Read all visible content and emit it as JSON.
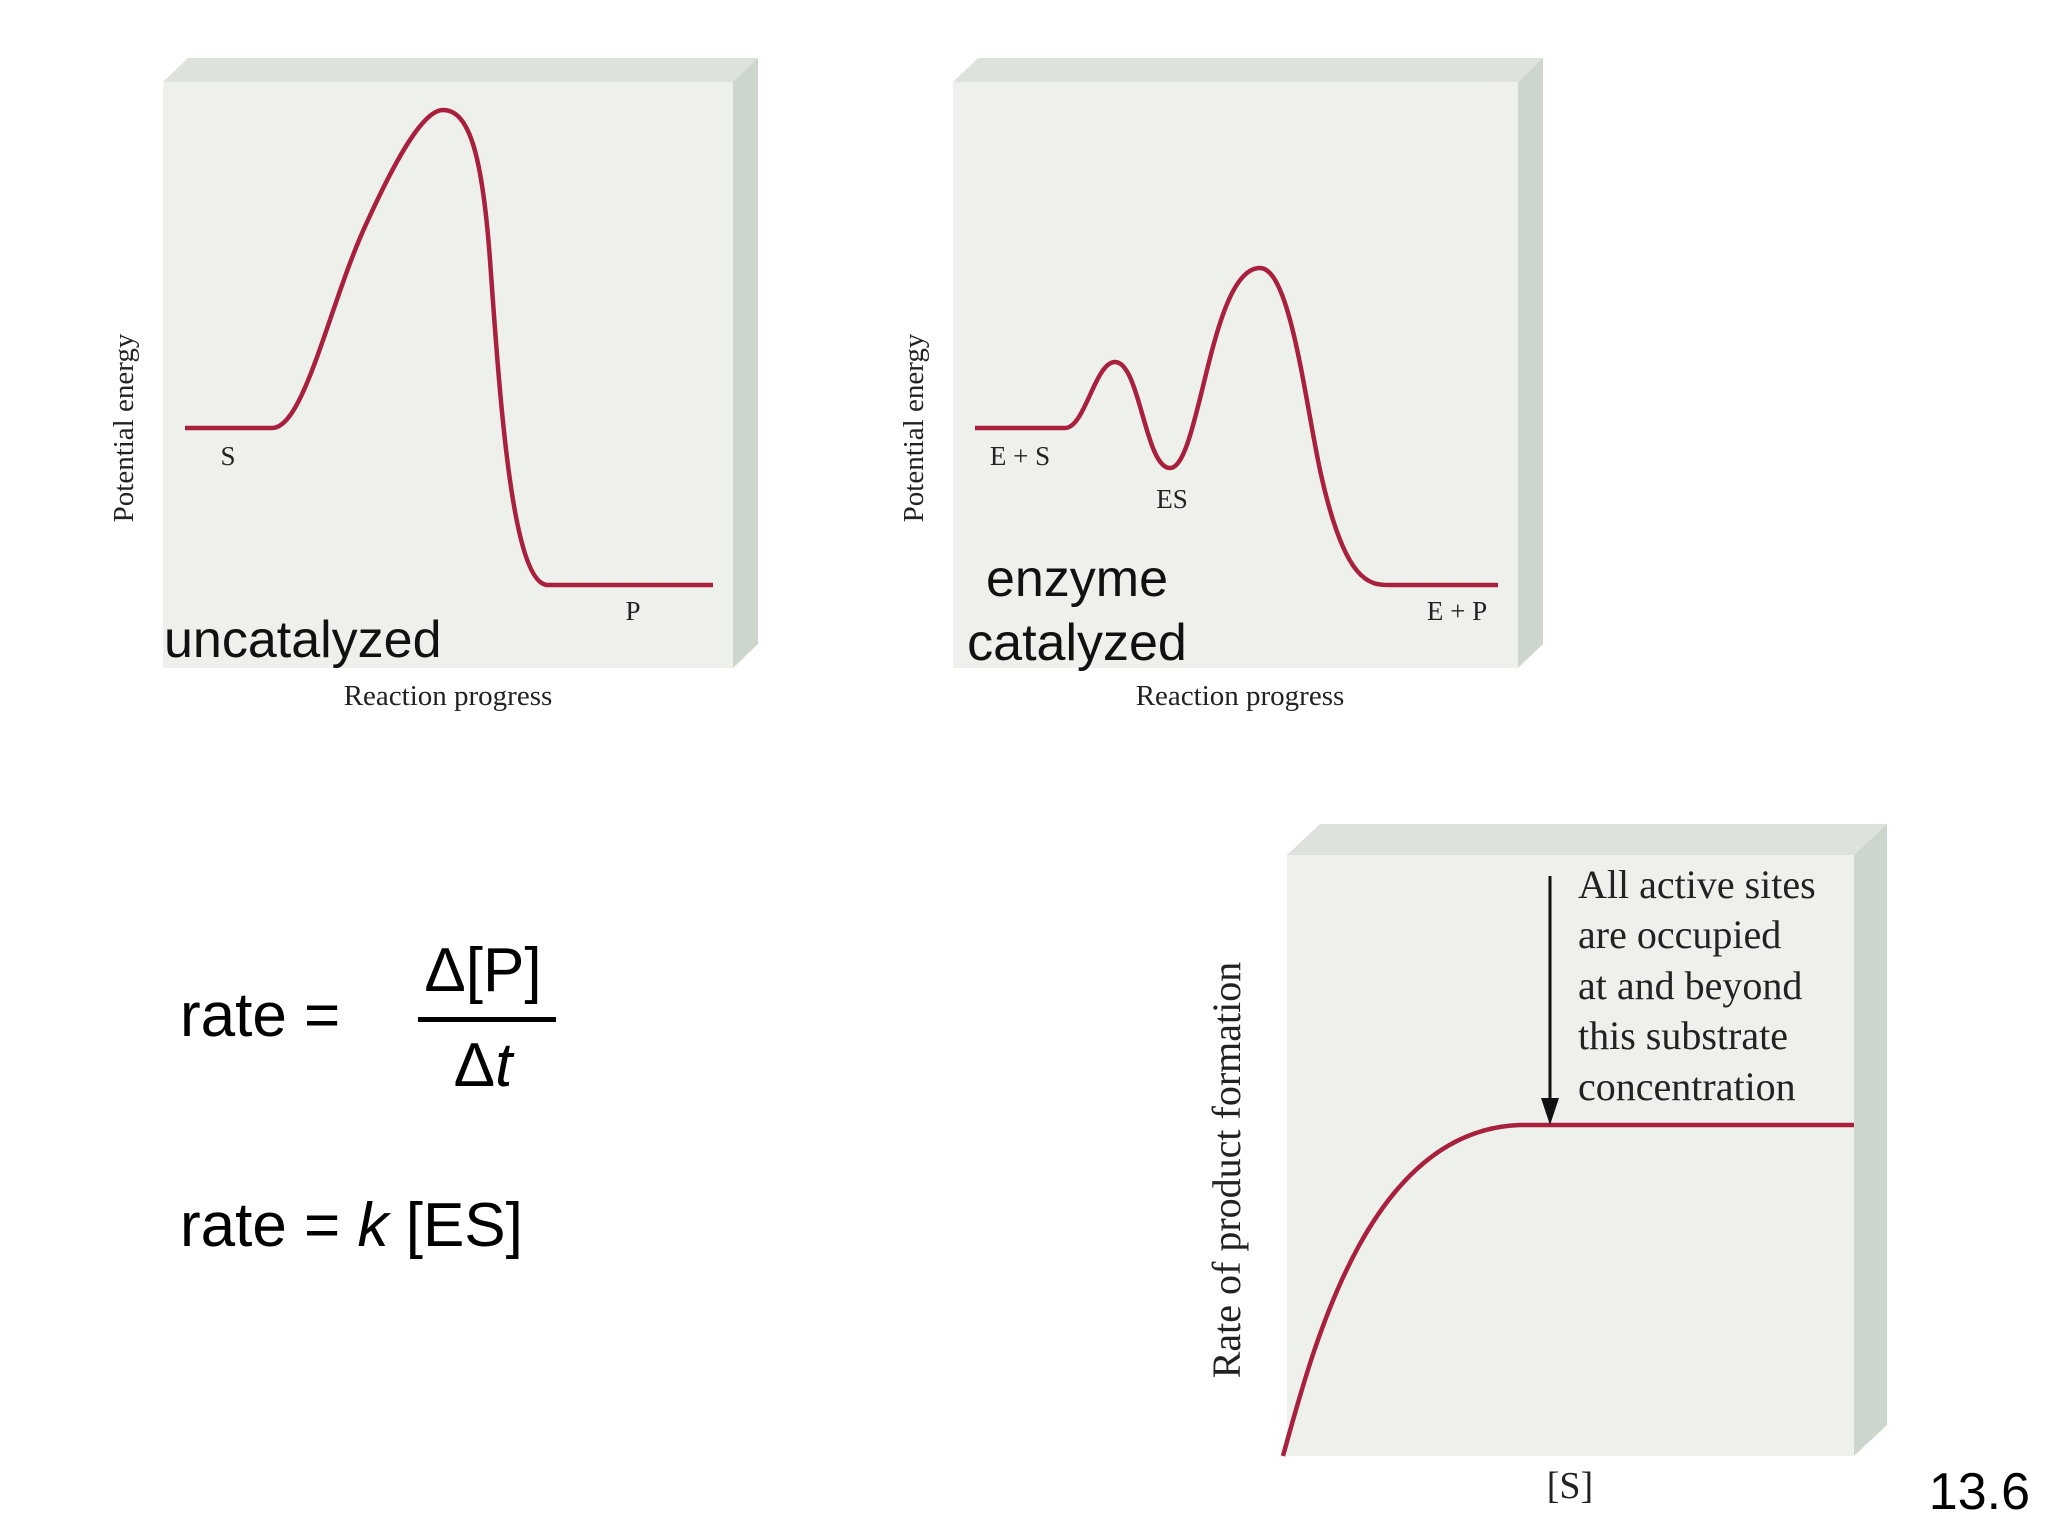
{
  "uncatalyzed": {
    "y_axis_label": "Potential energy",
    "x_axis_label": "Reaction progress",
    "caption": "uncatalyzed",
    "labels": {
      "substrate": "S",
      "product": "P"
    }
  },
  "catalyzed": {
    "y_axis_label": "Potential energy",
    "x_axis_label": "Reaction progress",
    "caption_line1": "enzyme",
    "caption_line2": "catalyzed",
    "labels": {
      "reactants": "E + S",
      "intermediate": "ES",
      "products": "E + P"
    }
  },
  "saturation": {
    "y_axis_label": "Rate of product formation",
    "x_axis_label": "[S]",
    "annotation": [
      "All active sites",
      "are occupied",
      "at and beyond",
      "this substrate",
      "concentration"
    ]
  },
  "equations": {
    "rate_lhs": "rate =",
    "numerator": "Δ[P]",
    "denominator_delta": "Δ",
    "denominator_var": "t",
    "rate2_prefix": "rate = ",
    "rate2_k": "k",
    "rate2_suffix": " [ES]"
  },
  "slide_number": "13.6",
  "colors": {
    "curve": "#a8203c",
    "panel_face": "#eef0ec",
    "panel_side": "#cdd6cd",
    "panel_top": "#dde3dc"
  }
}
